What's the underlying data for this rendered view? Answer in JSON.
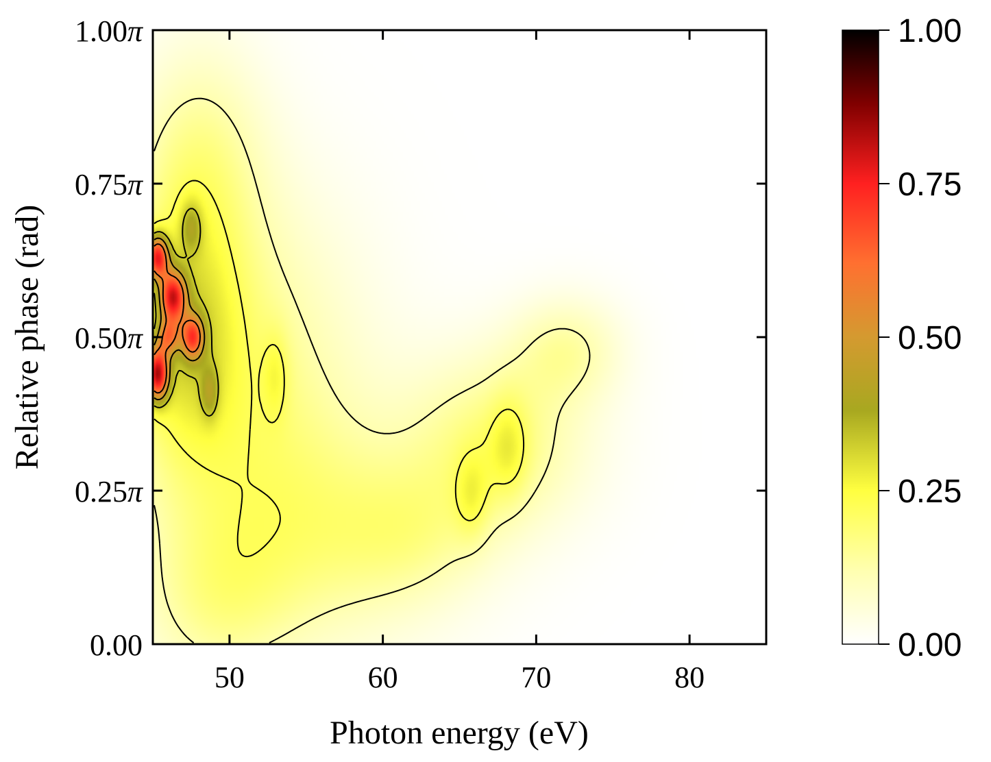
{
  "chart_data": {
    "type": "heatmap",
    "title": "",
    "xlabel": "Photon energy (eV)",
    "ylabel": "Relative phase (rad)",
    "xlim": [
      45,
      85
    ],
    "ylim": [
      0,
      1
    ],
    "x_ticks": [
      {
        "value": 50,
        "label": "50"
      },
      {
        "value": 60,
        "label": "60"
      },
      {
        "value": 70,
        "label": "70"
      },
      {
        "value": 80,
        "label": "80"
      }
    ],
    "y_ticks": [
      {
        "value": 0.0,
        "label": "0.00",
        "pi": ""
      },
      {
        "value": 0.25,
        "label": "0.25",
        "pi": "π"
      },
      {
        "value": 0.5,
        "label": "0.50",
        "pi": "π"
      },
      {
        "value": 0.75,
        "label": "0.75",
        "pi": "π"
      },
      {
        "value": 1.0,
        "label": "1.00",
        "pi": "π"
      }
    ],
    "colorbar": {
      "range": [
        0,
        1
      ],
      "ticks": [
        {
          "value": 0.0,
          "label": "0.00"
        },
        {
          "value": 0.25,
          "label": "0.25"
        },
        {
          "value": 0.5,
          "label": "0.50"
        },
        {
          "value": 0.75,
          "label": "0.75"
        },
        {
          "value": 1.0,
          "label": "1.00"
        }
      ],
      "stops": [
        {
          "value": 0.0,
          "color": "#ffffff"
        },
        {
          "value": 0.12,
          "color": "#ffffb0"
        },
        {
          "value": 0.25,
          "color": "#ffff40"
        },
        {
          "value": 0.38,
          "color": "#a8a820"
        },
        {
          "value": 0.5,
          "color": "#d49a30"
        },
        {
          "value": 0.62,
          "color": "#ff7030"
        },
        {
          "value": 0.75,
          "color": "#ff2020"
        },
        {
          "value": 0.88,
          "color": "#800000"
        },
        {
          "value": 1.0,
          "color": "#000000"
        }
      ]
    },
    "features": [
      {
        "name": "band-upper-left",
        "x": 48.0,
        "y": 0.78,
        "sx": 3.0,
        "sy": 0.14,
        "amp": 0.14
      },
      {
        "name": "band-left-wide",
        "x": 50.5,
        "y": 0.45,
        "sx": 5.5,
        "sy": 0.2,
        "amp": 0.16
      },
      {
        "name": "band-left-core",
        "x": 47.0,
        "y": 0.5,
        "sx": 2.5,
        "sy": 0.14,
        "amp": 0.18
      },
      {
        "name": "band-low-diagonal",
        "x": 55.0,
        "y": 0.18,
        "sx": 6.0,
        "sy": 0.14,
        "amp": 0.14
      },
      {
        "name": "band-bottom-left",
        "x": 49.0,
        "y": 0.06,
        "sx": 3.5,
        "sy": 0.1,
        "amp": 0.1
      },
      {
        "name": "ridge-right",
        "x": 67.5,
        "y": 0.33,
        "sx": 4.0,
        "sy": 0.1,
        "amp": 0.17
      },
      {
        "name": "ridge-right-top",
        "x": 72.0,
        "y": 0.48,
        "sx": 2.5,
        "sy": 0.06,
        "amp": 0.12
      },
      {
        "name": "ridge-right-low",
        "x": 62.0,
        "y": 0.18,
        "sx": 3.5,
        "sy": 0.08,
        "amp": 0.09
      },
      {
        "name": "peak-1",
        "x": 45.3,
        "y": 0.63,
        "sx": 0.5,
        "sy": 0.025,
        "amp": 0.55
      },
      {
        "name": "peak-2",
        "x": 46.3,
        "y": 0.565,
        "sx": 0.6,
        "sy": 0.03,
        "amp": 0.52
      },
      {
        "name": "peak-3",
        "x": 47.6,
        "y": 0.5,
        "sx": 0.5,
        "sy": 0.025,
        "amp": 0.4
      },
      {
        "name": "peak-4",
        "x": 45.3,
        "y": 0.44,
        "sx": 0.5,
        "sy": 0.03,
        "amp": 0.6
      },
      {
        "name": "peak-5",
        "x": 46.0,
        "y": 0.5,
        "sx": 0.5,
        "sy": 0.02,
        "amp": 0.28
      },
      {
        "name": "peak-6",
        "x": 47.5,
        "y": 0.68,
        "sx": 0.5,
        "sy": 0.03,
        "amp": 0.15
      },
      {
        "name": "peak-7",
        "x": 48.7,
        "y": 0.41,
        "sx": 0.4,
        "sy": 0.03,
        "amp": 0.14
      },
      {
        "name": "peak-8",
        "x": 53.0,
        "y": 0.44,
        "sx": 0.6,
        "sy": 0.05,
        "amp": 0.08
      },
      {
        "name": "peak-9",
        "x": 65.8,
        "y": 0.24,
        "sx": 0.8,
        "sy": 0.05,
        "amp": 0.1
      },
      {
        "name": "peak-10",
        "x": 68.2,
        "y": 0.32,
        "sx": 0.9,
        "sy": 0.06,
        "amp": 0.1
      }
    ],
    "contour_levels": [
      0.12,
      0.22,
      0.33,
      0.45,
      0.58
    ]
  }
}
